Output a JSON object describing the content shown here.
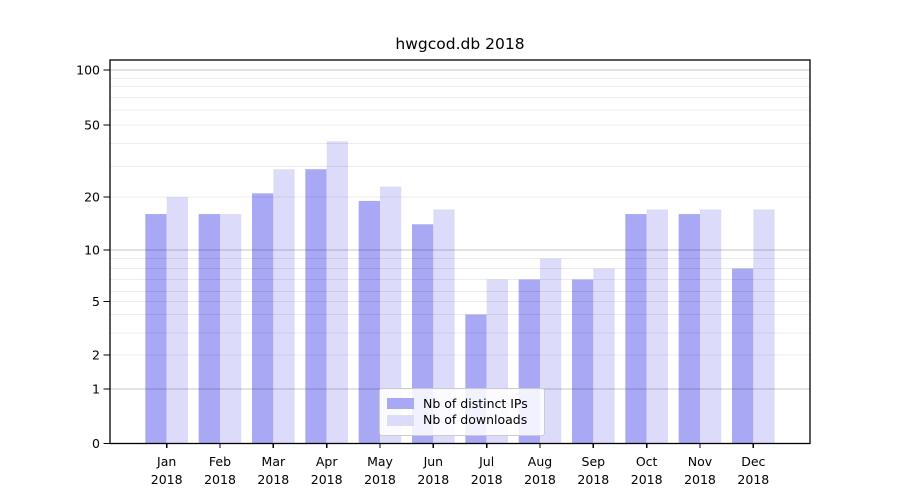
{
  "title": "hwgcod.db 2018",
  "legend": {
    "items": [
      {
        "label": "Nb of distinct IPs",
        "color": "#a8a8f5"
      },
      {
        "label": "Nb of downloads",
        "color": "#dcdcfa"
      }
    ]
  },
  "colors": {
    "bar_ips": "#a8a8f5",
    "bar_downloads": "#dcdcfa",
    "axis": "#000000",
    "grid_major": "#c3c3c3",
    "grid_minor": "#ebebeb"
  },
  "chart_data": {
    "type": "bar",
    "title": "hwgcod.db 2018",
    "categories": [
      "Jan 2018",
      "Feb 2018",
      "Mar 2018",
      "Apr 2018",
      "May 2018",
      "Jun 2018",
      "Jul 2018",
      "Aug 2018",
      "Sep 2018",
      "Oct 2018",
      "Nov 2018",
      "Dec 2018"
    ],
    "series": [
      {
        "name": "Nb of distinct IPs",
        "color": "#a8a8f5",
        "values": [
          16,
          16,
          21,
          29,
          19,
          14,
          4,
          7,
          7,
          16,
          16,
          8
        ]
      },
      {
        "name": "Nb of downloads",
        "color": "#dcdcfa",
        "values": [
          20,
          16,
          29,
          41,
          23,
          17,
          7,
          9,
          8,
          17,
          17,
          17
        ]
      }
    ],
    "yscale": "log",
    "ylim": [
      0,
      114
    ],
    "y_major_ticks": [
      0,
      1,
      2,
      5,
      10,
      20,
      50,
      100
    ],
    "y_minor_gridlines": [
      3,
      4,
      6,
      7,
      8,
      9,
      30,
      40,
      60,
      70,
      80,
      90
    ],
    "grid": true,
    "legend_position": "lower center"
  }
}
